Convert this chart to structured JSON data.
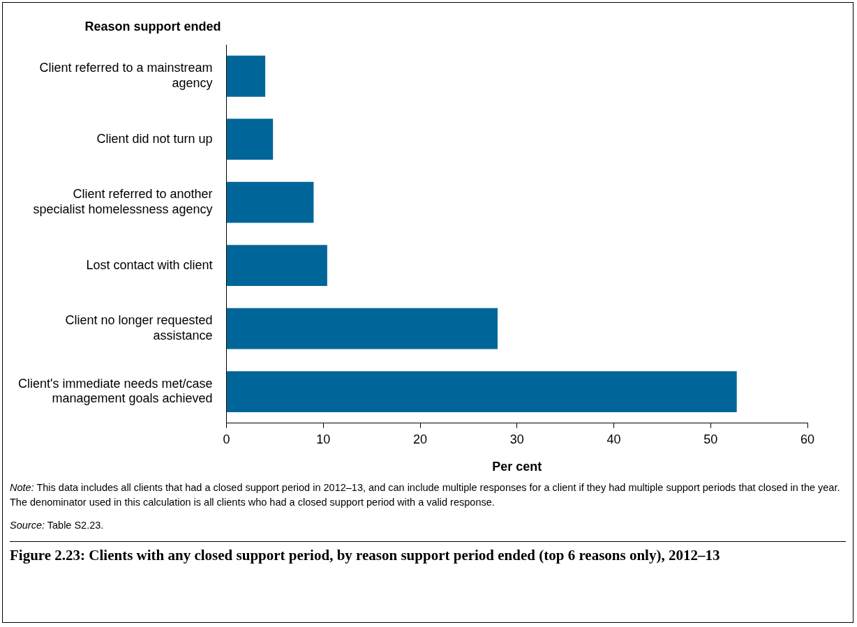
{
  "chart_data": {
    "type": "bar",
    "orientation": "horizontal",
    "ylabel": "Reason support ended",
    "xlabel": "Per cent",
    "title": "Figure 2.23: Clients with any closed support period, by reason support period ended (top 6 reasons only), 2012–13",
    "categories": [
      "Client referred to a mainstream agency",
      "Client did not turn up",
      "Client referred to another specialist homelessness agency",
      "Lost contact with client",
      "Client no longer requested assistance",
      "Client's immediate needs met/case management goals achieved"
    ],
    "values": [
      4.0,
      4.8,
      9.0,
      10.4,
      28.0,
      52.7
    ],
    "color": "#006699",
    "xlim": [
      0,
      60
    ],
    "xticks": [
      0,
      10,
      20,
      30,
      40,
      50,
      60
    ],
    "grid": false,
    "annotations": [
      "Note: This data includes all clients that had a closed support period in 2012–13, and can include multiple responses for a client if they had multiple support periods that closed in the year. The denominator used in this calculation is all clients who had a closed support period with a valid response.",
      "Source: Table S2.23."
    ]
  }
}
